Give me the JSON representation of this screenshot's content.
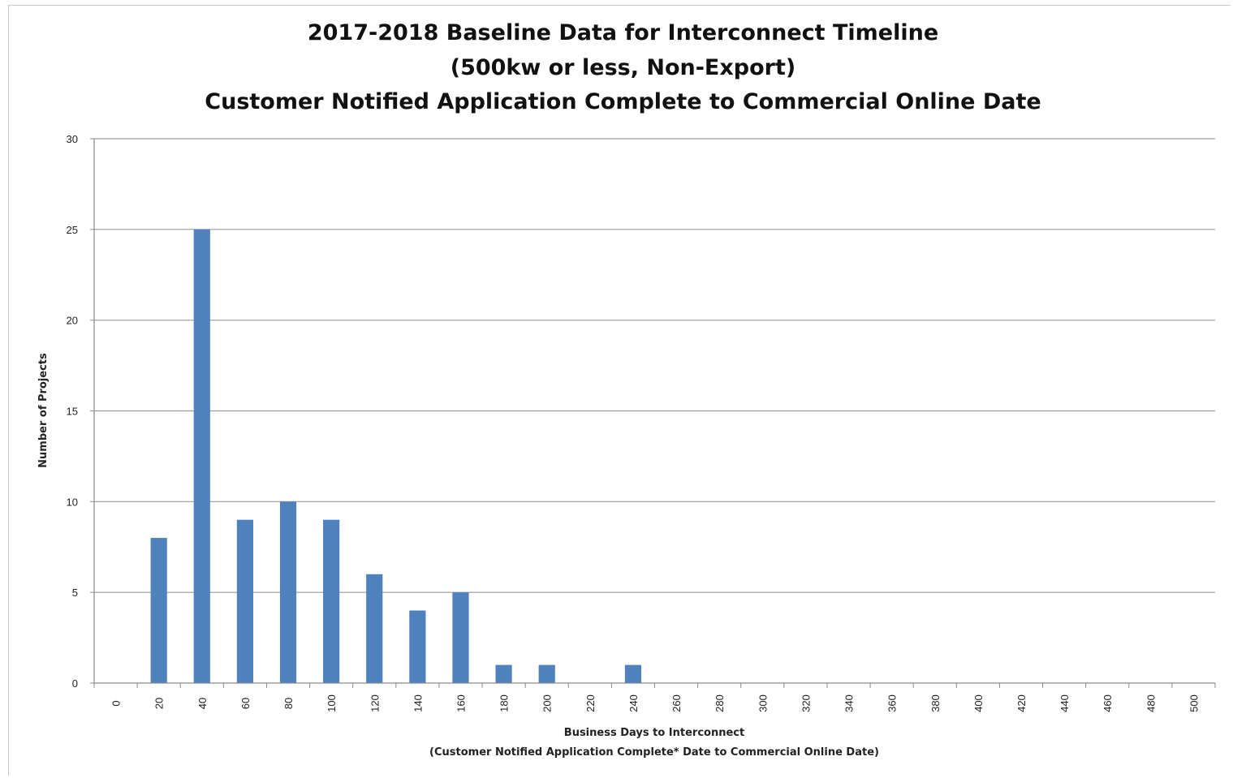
{
  "chart_data": {
    "type": "bar",
    "title": [
      "2017-2018 Baseline Data for Interconnect Timeline",
      "(500kw or less, Non-Export)",
      "Customer Notified Application Complete to Commercial Online Date"
    ],
    "xlabel": [
      "Business Days to Interconnect",
      "(Customer Notified Application Complete* Date to Commercial Online Date)"
    ],
    "ylabel": "Number of Projects",
    "categories": [
      "0",
      "20",
      "40",
      "60",
      "80",
      "100",
      "120",
      "140",
      "160",
      "180",
      "200",
      "220",
      "240",
      "260",
      "280",
      "300",
      "320",
      "340",
      "360",
      "380",
      "400",
      "420",
      "440",
      "460",
      "480",
      "500"
    ],
    "values": [
      0,
      8,
      25,
      9,
      10,
      9,
      6,
      4,
      5,
      1,
      1,
      0,
      1,
      0,
      0,
      0,
      0,
      0,
      0,
      0,
      0,
      0,
      0,
      0,
      0,
      0
    ],
    "ylim": [
      0,
      30
    ],
    "yticks": [
      0,
      5,
      10,
      15,
      20,
      25,
      30
    ],
    "grid": true,
    "bar_color": "#4f81bd"
  }
}
